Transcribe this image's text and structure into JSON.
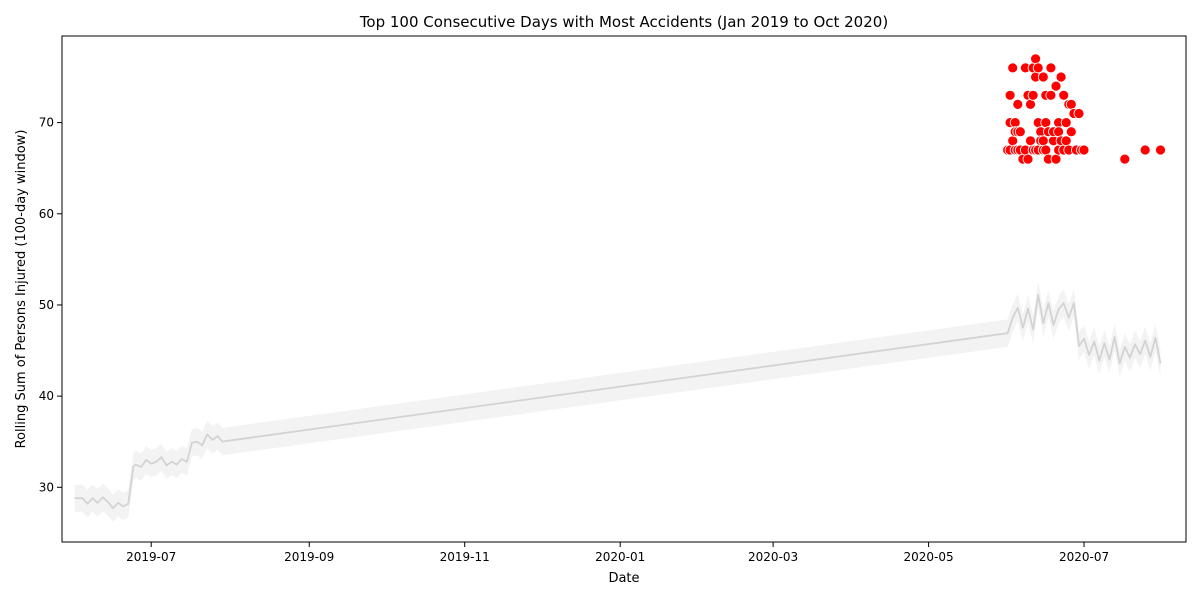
{
  "chart_data": {
    "type": "line",
    "title": "Top 100 Consecutive Days with Most Accidents (Jan 2019 to Oct 2020)",
    "xlabel": "Date",
    "ylabel": "Rolling Sum of Persons Injured (100-day window)",
    "xlim": [
      "2019-05-27",
      "2020-08-10"
    ],
    "ylim": [
      24,
      79.5
    ],
    "x_ticks": [
      "2019-07",
      "2019-09",
      "2019-11",
      "2020-01",
      "2020-03",
      "2020-05",
      "2020-07"
    ],
    "y_ticks": [
      30,
      40,
      50,
      60,
      70
    ],
    "grid": false,
    "legend": "none",
    "colors": {
      "line": "#d3d3d3",
      "band": "#ebebeb",
      "points": "#ff0000",
      "point_edge": "#ffffff"
    },
    "series": [
      {
        "type": "line",
        "band_halfwidth": 1.5,
        "x": [
          "2019-06-01",
          "2019-06-04",
          "2019-06-06",
          "2019-06-08",
          "2019-06-10",
          "2019-06-12",
          "2019-06-14",
          "2019-06-16",
          "2019-06-18",
          "2019-06-20",
          "2019-06-22",
          "2019-06-24",
          "2019-06-25",
          "2019-06-27",
          "2019-06-29",
          "2019-07-01",
          "2019-07-03",
          "2019-07-05",
          "2019-07-07",
          "2019-07-09",
          "2019-07-11",
          "2019-07-13",
          "2019-07-15",
          "2019-07-17",
          "2019-07-19",
          "2019-07-21",
          "2019-07-23",
          "2019-07-25",
          "2019-07-27",
          "2019-07-29",
          "2019-07-31",
          "2020-06-01",
          "2020-06-03",
          "2020-06-05",
          "2020-06-07",
          "2020-06-09",
          "2020-06-11",
          "2020-06-13",
          "2020-06-15",
          "2020-06-17",
          "2020-06-19",
          "2020-06-21",
          "2020-06-23",
          "2020-06-25",
          "2020-06-27",
          "2020-06-29",
          "2020-07-01",
          "2020-07-03",
          "2020-07-05",
          "2020-07-07",
          "2020-07-09",
          "2020-07-11",
          "2020-07-13",
          "2020-07-15",
          "2020-07-17",
          "2020-07-19",
          "2020-07-21",
          "2020-07-23",
          "2020-07-25",
          "2020-07-27",
          "2020-07-29",
          "2020-07-31"
        ],
        "y": [
          28.8,
          28.8,
          28.2,
          28.8,
          28.3,
          28.9,
          28.4,
          27.7,
          28.3,
          27.9,
          28.2,
          32.3,
          32.5,
          32.2,
          33.0,
          32.6,
          32.8,
          33.3,
          32.4,
          32.8,
          32.5,
          33.1,
          32.8,
          34.9,
          35.0,
          34.6,
          35.8,
          35.2,
          35.6,
          35.0,
          35.1,
          46.9,
          48.6,
          49.7,
          47.5,
          49.6,
          47.3,
          51.1,
          48.0,
          50.2,
          47.8,
          49.5,
          50.2,
          48.6,
          50.2,
          45.5,
          46.3,
          44.5,
          46.0,
          43.9,
          45.8,
          44.0,
          46.5,
          43.6,
          45.4,
          44.2,
          45.7,
          44.6,
          46.1,
          44.3,
          46.4,
          43.6
        ]
      },
      {
        "type": "scatter",
        "x": [
          "2020-06-01",
          "2020-06-02",
          "2020-06-02",
          "2020-06-02",
          "2020-06-03",
          "2020-06-03",
          "2020-06-04",
          "2020-06-04",
          "2020-06-04",
          "2020-06-05",
          "2020-06-05",
          "2020-06-05",
          "2020-06-06",
          "2020-06-06",
          "2020-06-07",
          "2020-06-08",
          "2020-06-08",
          "2020-06-09",
          "2020-06-09",
          "2020-06-10",
          "2020-06-10",
          "2020-06-11",
          "2020-06-11",
          "2020-06-11",
          "2020-06-12",
          "2020-06-12",
          "2020-06-12",
          "2020-06-13",
          "2020-06-13",
          "2020-06-13",
          "2020-06-14",
          "2020-06-14",
          "2020-06-15",
          "2020-06-15",
          "2020-06-15",
          "2020-06-16",
          "2020-06-16",
          "2020-06-16",
          "2020-06-17",
          "2020-06-17",
          "2020-06-18",
          "2020-06-18",
          "2020-06-19",
          "2020-06-19",
          "2020-06-20",
          "2020-06-20",
          "2020-06-21",
          "2020-06-21",
          "2020-06-21",
          "2020-06-22",
          "2020-06-22",
          "2020-06-23",
          "2020-06-23",
          "2020-06-24",
          "2020-06-24",
          "2020-06-25",
          "2020-06-25",
          "2020-06-26",
          "2020-06-26",
          "2020-06-27",
          "2020-06-28",
          "2020-06-29",
          "2020-06-30",
          "2020-07-01",
          "2020-07-17",
          "2020-07-25",
          "2020-07-31"
        ],
        "y": [
          67,
          70,
          73,
          67,
          76,
          68,
          70,
          69,
          67,
          72,
          69,
          67,
          69,
          67,
          66,
          76,
          67,
          73,
          66,
          72,
          68,
          76,
          67,
          73,
          77,
          75,
          67,
          76,
          70,
          67,
          69,
          68,
          75,
          67,
          68,
          73,
          67,
          70,
          66,
          69,
          76,
          73,
          68,
          69,
          74,
          66,
          70,
          67,
          69,
          75,
          68,
          73,
          67,
          70,
          68,
          72,
          67,
          72,
          69,
          71,
          67,
          71,
          67,
          67,
          66,
          67,
          67
        ]
      }
    ]
  }
}
